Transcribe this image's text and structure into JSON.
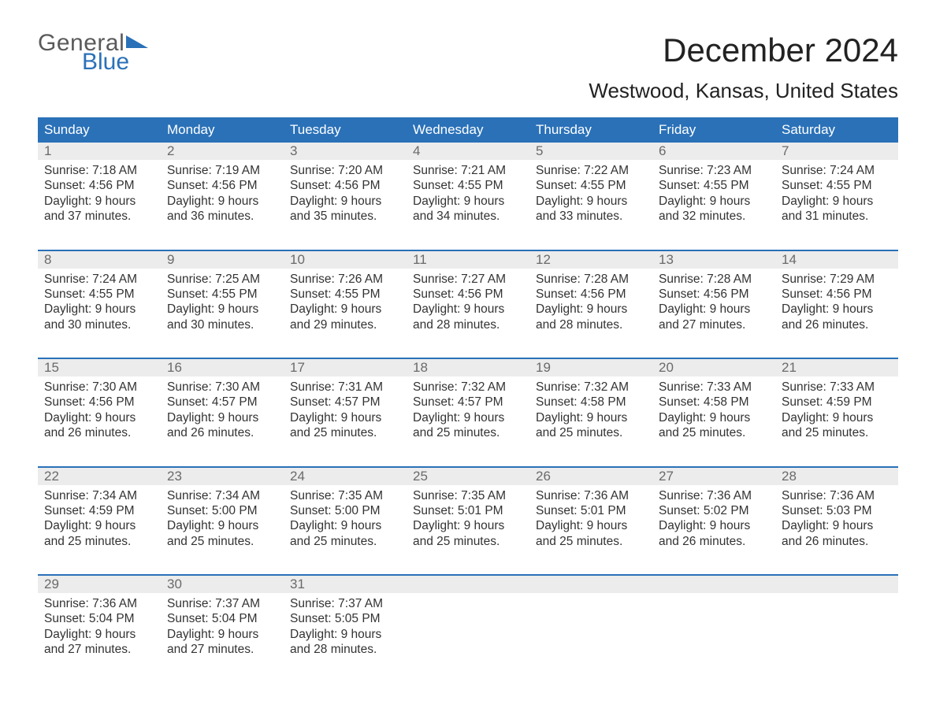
{
  "logo": {
    "text_general": "General",
    "text_blue": "Blue",
    "flag_color": "#2a71b8"
  },
  "title": "December 2024",
  "location": "Westwood, Kansas, United States",
  "colors": {
    "header_bg": "#2a71b8",
    "header_text": "#ffffff",
    "daynum_bg": "#ececec",
    "daynum_text": "#6a6a6a",
    "body_text": "#333333",
    "week_border": "#2a71b8",
    "page_bg": "#ffffff"
  },
  "typography": {
    "title_fontsize": 42,
    "location_fontsize": 26,
    "weekday_fontsize": 17,
    "daynum_fontsize": 17,
    "body_fontsize": 15.5,
    "font_family": "Arial"
  },
  "weekdays": [
    "Sunday",
    "Monday",
    "Tuesday",
    "Wednesday",
    "Thursday",
    "Friday",
    "Saturday"
  ],
  "labels": {
    "sunrise": "Sunrise:",
    "sunset": "Sunset:",
    "daylight": "Daylight:"
  },
  "weeks": [
    [
      {
        "num": "1",
        "sunrise": "7:18 AM",
        "sunset": "4:56 PM",
        "daylight1": "Daylight: 9 hours",
        "daylight2": "and 37 minutes."
      },
      {
        "num": "2",
        "sunrise": "7:19 AM",
        "sunset": "4:56 PM",
        "daylight1": "Daylight: 9 hours",
        "daylight2": "and 36 minutes."
      },
      {
        "num": "3",
        "sunrise": "7:20 AM",
        "sunset": "4:56 PM",
        "daylight1": "Daylight: 9 hours",
        "daylight2": "and 35 minutes."
      },
      {
        "num": "4",
        "sunrise": "7:21 AM",
        "sunset": "4:55 PM",
        "daylight1": "Daylight: 9 hours",
        "daylight2": "and 34 minutes."
      },
      {
        "num": "5",
        "sunrise": "7:22 AM",
        "sunset": "4:55 PM",
        "daylight1": "Daylight: 9 hours",
        "daylight2": "and 33 minutes."
      },
      {
        "num": "6",
        "sunrise": "7:23 AM",
        "sunset": "4:55 PM",
        "daylight1": "Daylight: 9 hours",
        "daylight2": "and 32 minutes."
      },
      {
        "num": "7",
        "sunrise": "7:24 AM",
        "sunset": "4:55 PM",
        "daylight1": "Daylight: 9 hours",
        "daylight2": "and 31 minutes."
      }
    ],
    [
      {
        "num": "8",
        "sunrise": "7:24 AM",
        "sunset": "4:55 PM",
        "daylight1": "Daylight: 9 hours",
        "daylight2": "and 30 minutes."
      },
      {
        "num": "9",
        "sunrise": "7:25 AM",
        "sunset": "4:55 PM",
        "daylight1": "Daylight: 9 hours",
        "daylight2": "and 30 minutes."
      },
      {
        "num": "10",
        "sunrise": "7:26 AM",
        "sunset": "4:55 PM",
        "daylight1": "Daylight: 9 hours",
        "daylight2": "and 29 minutes."
      },
      {
        "num": "11",
        "sunrise": "7:27 AM",
        "sunset": "4:56 PM",
        "daylight1": "Daylight: 9 hours",
        "daylight2": "and 28 minutes."
      },
      {
        "num": "12",
        "sunrise": "7:28 AM",
        "sunset": "4:56 PM",
        "daylight1": "Daylight: 9 hours",
        "daylight2": "and 28 minutes."
      },
      {
        "num": "13",
        "sunrise": "7:28 AM",
        "sunset": "4:56 PM",
        "daylight1": "Daylight: 9 hours",
        "daylight2": "and 27 minutes."
      },
      {
        "num": "14",
        "sunrise": "7:29 AM",
        "sunset": "4:56 PM",
        "daylight1": "Daylight: 9 hours",
        "daylight2": "and 26 minutes."
      }
    ],
    [
      {
        "num": "15",
        "sunrise": "7:30 AM",
        "sunset": "4:56 PM",
        "daylight1": "Daylight: 9 hours",
        "daylight2": "and 26 minutes."
      },
      {
        "num": "16",
        "sunrise": "7:30 AM",
        "sunset": "4:57 PM",
        "daylight1": "Daylight: 9 hours",
        "daylight2": "and 26 minutes."
      },
      {
        "num": "17",
        "sunrise": "7:31 AM",
        "sunset": "4:57 PM",
        "daylight1": "Daylight: 9 hours",
        "daylight2": "and 25 minutes."
      },
      {
        "num": "18",
        "sunrise": "7:32 AM",
        "sunset": "4:57 PM",
        "daylight1": "Daylight: 9 hours",
        "daylight2": "and 25 minutes."
      },
      {
        "num": "19",
        "sunrise": "7:32 AM",
        "sunset": "4:58 PM",
        "daylight1": "Daylight: 9 hours",
        "daylight2": "and 25 minutes."
      },
      {
        "num": "20",
        "sunrise": "7:33 AM",
        "sunset": "4:58 PM",
        "daylight1": "Daylight: 9 hours",
        "daylight2": "and 25 minutes."
      },
      {
        "num": "21",
        "sunrise": "7:33 AM",
        "sunset": "4:59 PM",
        "daylight1": "Daylight: 9 hours",
        "daylight2": "and 25 minutes."
      }
    ],
    [
      {
        "num": "22",
        "sunrise": "7:34 AM",
        "sunset": "4:59 PM",
        "daylight1": "Daylight: 9 hours",
        "daylight2": "and 25 minutes."
      },
      {
        "num": "23",
        "sunrise": "7:34 AM",
        "sunset": "5:00 PM",
        "daylight1": "Daylight: 9 hours",
        "daylight2": "and 25 minutes."
      },
      {
        "num": "24",
        "sunrise": "7:35 AM",
        "sunset": "5:00 PM",
        "daylight1": "Daylight: 9 hours",
        "daylight2": "and 25 minutes."
      },
      {
        "num": "25",
        "sunrise": "7:35 AM",
        "sunset": "5:01 PM",
        "daylight1": "Daylight: 9 hours",
        "daylight2": "and 25 minutes."
      },
      {
        "num": "26",
        "sunrise": "7:36 AM",
        "sunset": "5:01 PM",
        "daylight1": "Daylight: 9 hours",
        "daylight2": "and 25 minutes."
      },
      {
        "num": "27",
        "sunrise": "7:36 AM",
        "sunset": "5:02 PM",
        "daylight1": "Daylight: 9 hours",
        "daylight2": "and 26 minutes."
      },
      {
        "num": "28",
        "sunrise": "7:36 AM",
        "sunset": "5:03 PM",
        "daylight1": "Daylight: 9 hours",
        "daylight2": "and 26 minutes."
      }
    ],
    [
      {
        "num": "29",
        "sunrise": "7:36 AM",
        "sunset": "5:04 PM",
        "daylight1": "Daylight: 9 hours",
        "daylight2": "and 27 minutes."
      },
      {
        "num": "30",
        "sunrise": "7:37 AM",
        "sunset": "5:04 PM",
        "daylight1": "Daylight: 9 hours",
        "daylight2": "and 27 minutes."
      },
      {
        "num": "31",
        "sunrise": "7:37 AM",
        "sunset": "5:05 PM",
        "daylight1": "Daylight: 9 hours",
        "daylight2": "and 28 minutes."
      },
      null,
      null,
      null,
      null
    ]
  ]
}
